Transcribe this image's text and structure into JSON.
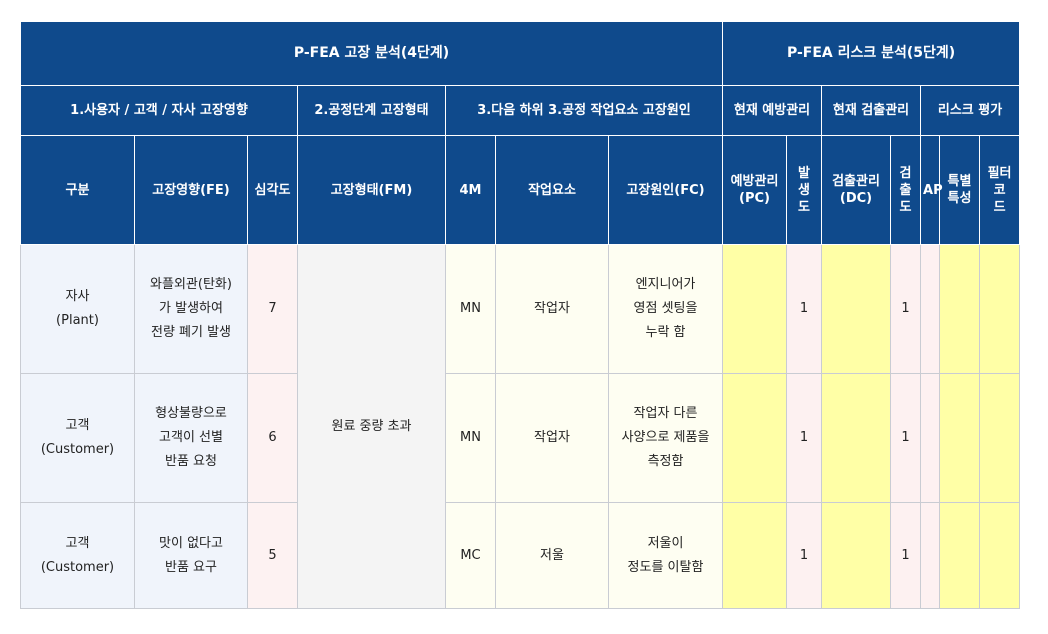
{
  "header": {
    "group_analysis": "P-FEA 고장 분석(4단계)",
    "group_risk": "P-FEA 리스크 분석(5단계)",
    "sub_effect": "1.사용자 / 고객 / 자사 고장영향",
    "sub_mode": "2.공정단계 고장형태",
    "sub_cause": "3.다음 하위 3.공정 작업요소 고장원인",
    "sub_prevention": "현재 예방관리",
    "sub_detection": "현재 검출관리",
    "sub_risk": "리스크 평가",
    "col_category": "구분",
    "col_effect": "고장영향(FE)",
    "col_severity": "심각도",
    "col_mode": "고장형태(FM)",
    "col_4m": "4M",
    "col_element": "작업요소",
    "col_cause": "고장원인(FC)",
    "col_pc": "예방관리\n(PC)",
    "col_occurrence": "발\n생\n도",
    "col_dc": "검출관리\n(DC)",
    "col_detection": "검\n출\n도",
    "col_ap": "AP",
    "col_special": "특별\n특성",
    "col_filter": "필터코\n드"
  },
  "failure_mode": "원료 중량 초과",
  "rows": [
    {
      "category": "자사\n(Plant)",
      "effect": "와플외관(탄화)\n가 발생하여\n전량 폐기 발생",
      "severity": "7",
      "m4": "MN",
      "element": "작업자",
      "cause": "엔지니어가\n영점 셋팅을\n누락 함",
      "pc": "",
      "occurrence": "1",
      "dc": "",
      "detection": "1",
      "ap": "",
      "special": "",
      "filter": ""
    },
    {
      "category": "고객\n(Customer)",
      "effect": "형상불량으로\n고객이 선별\n반품 요청",
      "severity": "6",
      "m4": "MN",
      "element": "작업자",
      "cause": "작업자 다른\n사양으로 제품을\n측정함",
      "pc": "",
      "occurrence": "1",
      "dc": "",
      "detection": "1",
      "ap": "",
      "special": "",
      "filter": ""
    },
    {
      "category": "고객\n(Customer)",
      "effect": "맛이 없다고\n반품 요구",
      "severity": "5",
      "m4": "MC",
      "element": "저울",
      "cause": "저울이\n정도를 이탈함",
      "pc": "",
      "occurrence": "1",
      "dc": "",
      "detection": "1",
      "ap": "",
      "special": "",
      "filter": ""
    }
  ]
}
